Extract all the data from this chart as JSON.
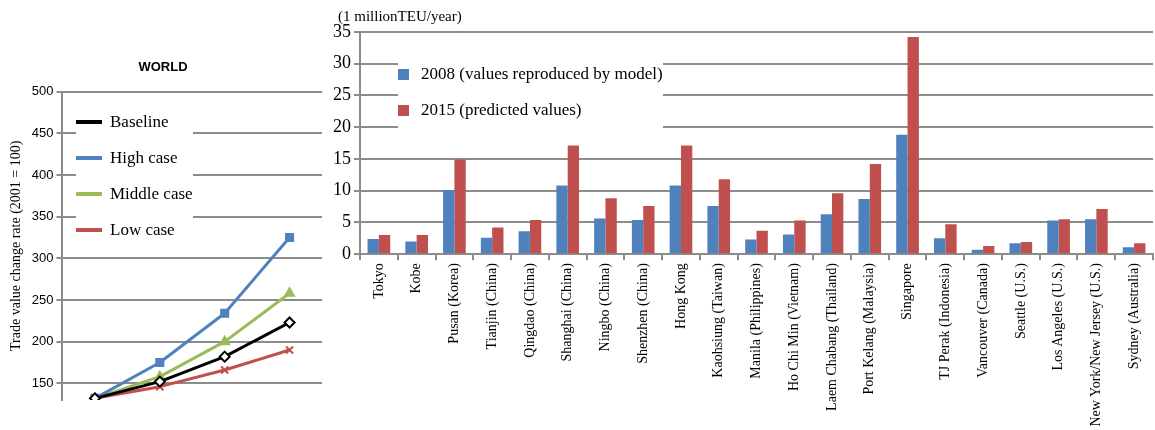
{
  "chart_data": [
    {
      "type": "line",
      "title": "WORLD",
      "ylabel": "Trade value change rate (2001 = 100)",
      "categories": [
        null,
        null,
        null,
        null
      ],
      "ylim": [
        130,
        500
      ],
      "yticks": [
        150,
        200,
        250,
        300,
        350,
        400,
        450,
        500
      ],
      "grid": "y",
      "legend": "top left",
      "tick_labels": "y",
      "series": [
        {
          "name": "Baseline",
          "color": "#000000",
          "marker": "diamond",
          "values": [
            132,
            152,
            182,
            223
          ]
        },
        {
          "name": "High case",
          "color": "#4f81bd",
          "marker": "square",
          "values": [
            132,
            175,
            234,
            325
          ]
        },
        {
          "name": "Middle case",
          "color": "#9bbb59",
          "marker": "triangle",
          "values": [
            132,
            158,
            200,
            258
          ]
        },
        {
          "name": "Low case",
          "color": "#c0504d",
          "marker": "cross",
          "values": [
            132,
            146,
            166,
            190
          ]
        }
      ]
    },
    {
      "type": "bar",
      "ylabel": "(1 millionTEU/year)",
      "categories": [
        "Tokyo",
        "Kobe",
        "Pusan (Korea)",
        "Tianjin (China)",
        "Qingdao (China)",
        "Shanghai (China)",
        "Ningbo (China)",
        "Shenzhen (China)",
        "Hong Kong",
        "Kaohsiung (Taiwan)",
        "Manila (Philippines)",
        "Ho Chi Min (Vietnam)",
        "Laem Chabang (Thailand)",
        "Port Kelang (Malaysia)",
        "Singapore",
        "TJ Perak (Indonesia)",
        "Vancouver (Canada)",
        "Seattle (U.S.)",
        "Los Angeles (U.S.)",
        "New York/New Jersey (U.S.)",
        "Sydney (Australia)"
      ],
      "ylim": [
        0,
        35
      ],
      "yticks": [
        0,
        5,
        10,
        15,
        20,
        25,
        30,
        35
      ],
      "grid": "y",
      "legend": "top left",
      "series": [
        {
          "name": "2008 (values reproduced by model)",
          "color": "#4f81bd",
          "values": [
            2.4,
            2.0,
            10.1,
            2.6,
            3.6,
            10.8,
            5.6,
            5.4,
            10.8,
            7.6,
            2.3,
            3.1,
            6.3,
            8.7,
            18.8,
            2.5,
            0.7,
            1.7,
            5.3,
            5.5,
            1.1
          ]
        },
        {
          "name": "2015 (predicted values)",
          "color": "#c0504d",
          "values": [
            3.0,
            3.0,
            14.9,
            4.2,
            5.4,
            17.1,
            8.8,
            7.6,
            17.1,
            11.8,
            3.7,
            5.3,
            9.6,
            14.2,
            34.2,
            4.7,
            1.3,
            1.9,
            5.5,
            7.1,
            1.7
          ]
        }
      ]
    }
  ]
}
